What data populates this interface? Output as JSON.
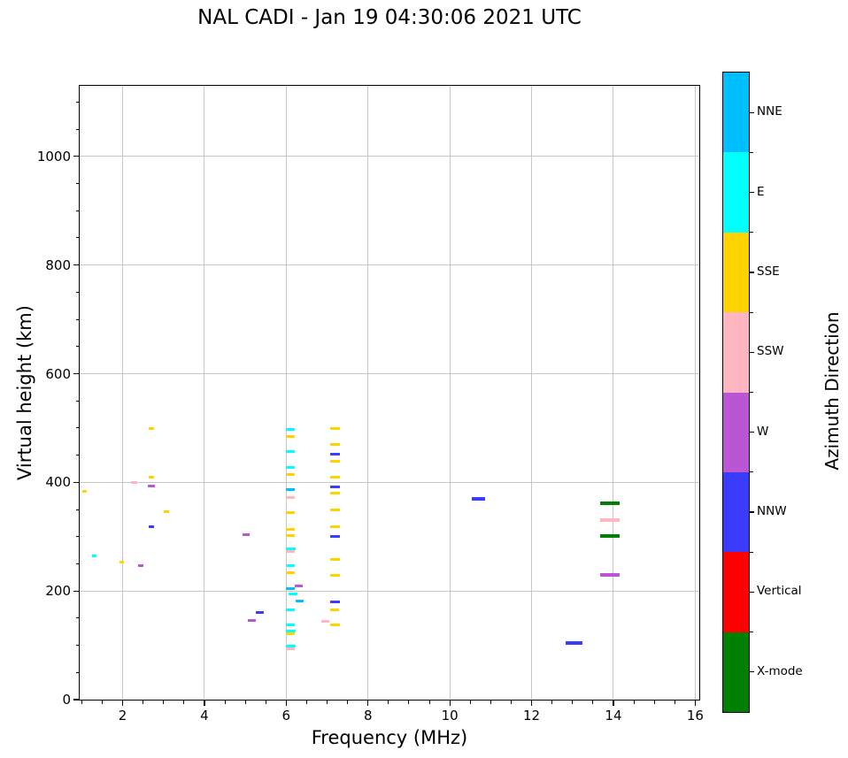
{
  "title": "NAL CADI - Jan 19 04:30:06 2021 UTC",
  "axes": {
    "xlabel": "Frequency (MHz)",
    "ylabel": "Virtual height (km)",
    "xlim": [
      0.95,
      16.1
    ],
    "ylim": [
      0,
      1130
    ],
    "xticks": [
      2,
      4,
      6,
      8,
      10,
      12,
      14,
      16
    ],
    "yticks": [
      0,
      200,
      400,
      600,
      800,
      1000
    ],
    "x_minor_step": 0.5,
    "y_minor_step": 50,
    "grid": true
  },
  "colorbar": {
    "label": "Azimuth Direction",
    "categories": [
      {
        "label": "NNE",
        "color": "#00BFFF"
      },
      {
        "label": "E",
        "color": "#00FFFF"
      },
      {
        "label": "SSE",
        "color": "#FFD300"
      },
      {
        "label": "SSW",
        "color": "#FFB6C1"
      },
      {
        "label": "W",
        "color": "#BA55D3"
      },
      {
        "label": "NNW",
        "color": "#3B3BFC"
      },
      {
        "label": "Vertical",
        "color": "#FF0000"
      },
      {
        "label": "X-mode",
        "color": "#008000"
      }
    ]
  },
  "chart_data": {
    "type": "scatter",
    "marker": "horizontal-dash",
    "title": "NAL CADI - Jan 19 04:30:06 2021 UTC",
    "xlabel": "Frequency (MHz)",
    "ylabel": "Virtual height (km)",
    "xlim": [
      0.95,
      16.1
    ],
    "ylim": [
      0,
      1130
    ],
    "grid": true,
    "legend_title": "Azimuth Direction",
    "point_format": "[frequency_MHz, virtual_height_km, dash_width_px]",
    "series": [
      {
        "name": "NNE",
        "color": "#00BFFF",
        "points": [
          [
            6.11,
            386,
            10
          ],
          [
            6.11,
            204,
            10
          ],
          [
            6.32,
            182,
            9
          ]
        ]
      },
      {
        "name": "E",
        "color": "#00FFFF",
        "points": [
          [
            1.3,
            265,
            5
          ],
          [
            6.11,
            497,
            10
          ],
          [
            6.11,
            456,
            10
          ],
          [
            6.11,
            427,
            10
          ],
          [
            6.11,
            277,
            11
          ],
          [
            6.11,
            247,
            9
          ],
          [
            6.17,
            195,
            10
          ],
          [
            6.11,
            165,
            10
          ],
          [
            6.11,
            137,
            10
          ],
          [
            6.12,
            126,
            11
          ],
          [
            6.11,
            98,
            11
          ]
        ]
      },
      {
        "name": "SSE",
        "color": "#FFD300",
        "points": [
          [
            1.07,
            383,
            5
          ],
          [
            1.98,
            254,
            5
          ],
          [
            2.71,
            499,
            6
          ],
          [
            2.71,
            410,
            6
          ],
          [
            3.07,
            346,
            6
          ],
          [
            6.11,
            485,
            10
          ],
          [
            6.11,
            415,
            9
          ],
          [
            6.11,
            344,
            10
          ],
          [
            6.11,
            314,
            10
          ],
          [
            6.11,
            302,
            10
          ],
          [
            6.11,
            234,
            10
          ],
          [
            6.11,
            122,
            10
          ],
          [
            7.19,
            499,
            11
          ],
          [
            7.19,
            469,
            11
          ],
          [
            7.19,
            438,
            11
          ],
          [
            7.19,
            409,
            11
          ],
          [
            7.19,
            380,
            11
          ],
          [
            7.19,
            349,
            11
          ],
          [
            7.19,
            318,
            11
          ],
          [
            7.19,
            258,
            11
          ],
          [
            7.19,
            228,
            11
          ],
          [
            7.19,
            166,
            10
          ],
          [
            7.19,
            138,
            11
          ]
        ]
      },
      {
        "name": "SSW",
        "color": "#FFB6C1",
        "points": [
          [
            2.29,
            400,
            7
          ],
          [
            6.11,
            372,
            10
          ],
          [
            6.11,
            272,
            10
          ],
          [
            6.11,
            94,
            10
          ],
          [
            6.96,
            144,
            9
          ],
          [
            13.92,
            330,
            22
          ]
        ]
      },
      {
        "name": "W",
        "color": "#BA55D3",
        "points": [
          [
            2.45,
            246,
            6
          ],
          [
            2.71,
            393,
            8
          ],
          [
            5.01,
            304,
            8
          ],
          [
            5.17,
            146,
            9
          ],
          [
            6.3,
            209,
            9
          ],
          [
            13.92,
            230,
            22
          ]
        ]
      },
      {
        "name": "NNW",
        "color": "#3B3BFC",
        "points": [
          [
            2.71,
            319,
            6
          ],
          [
            5.35,
            161,
            9
          ],
          [
            7.19,
            452,
            11
          ],
          [
            7.19,
            392,
            11
          ],
          [
            7.19,
            301,
            11
          ],
          [
            7.19,
            180,
            11
          ],
          [
            10.7,
            370,
            15
          ],
          [
            13.03,
            104,
            19
          ]
        ]
      },
      {
        "name": "Vertical",
        "color": "#FF0000",
        "points": []
      },
      {
        "name": "X-mode",
        "color": "#008000",
        "points": [
          [
            13.92,
            361,
            22
          ],
          [
            13.92,
            302,
            22
          ]
        ]
      }
    ]
  }
}
